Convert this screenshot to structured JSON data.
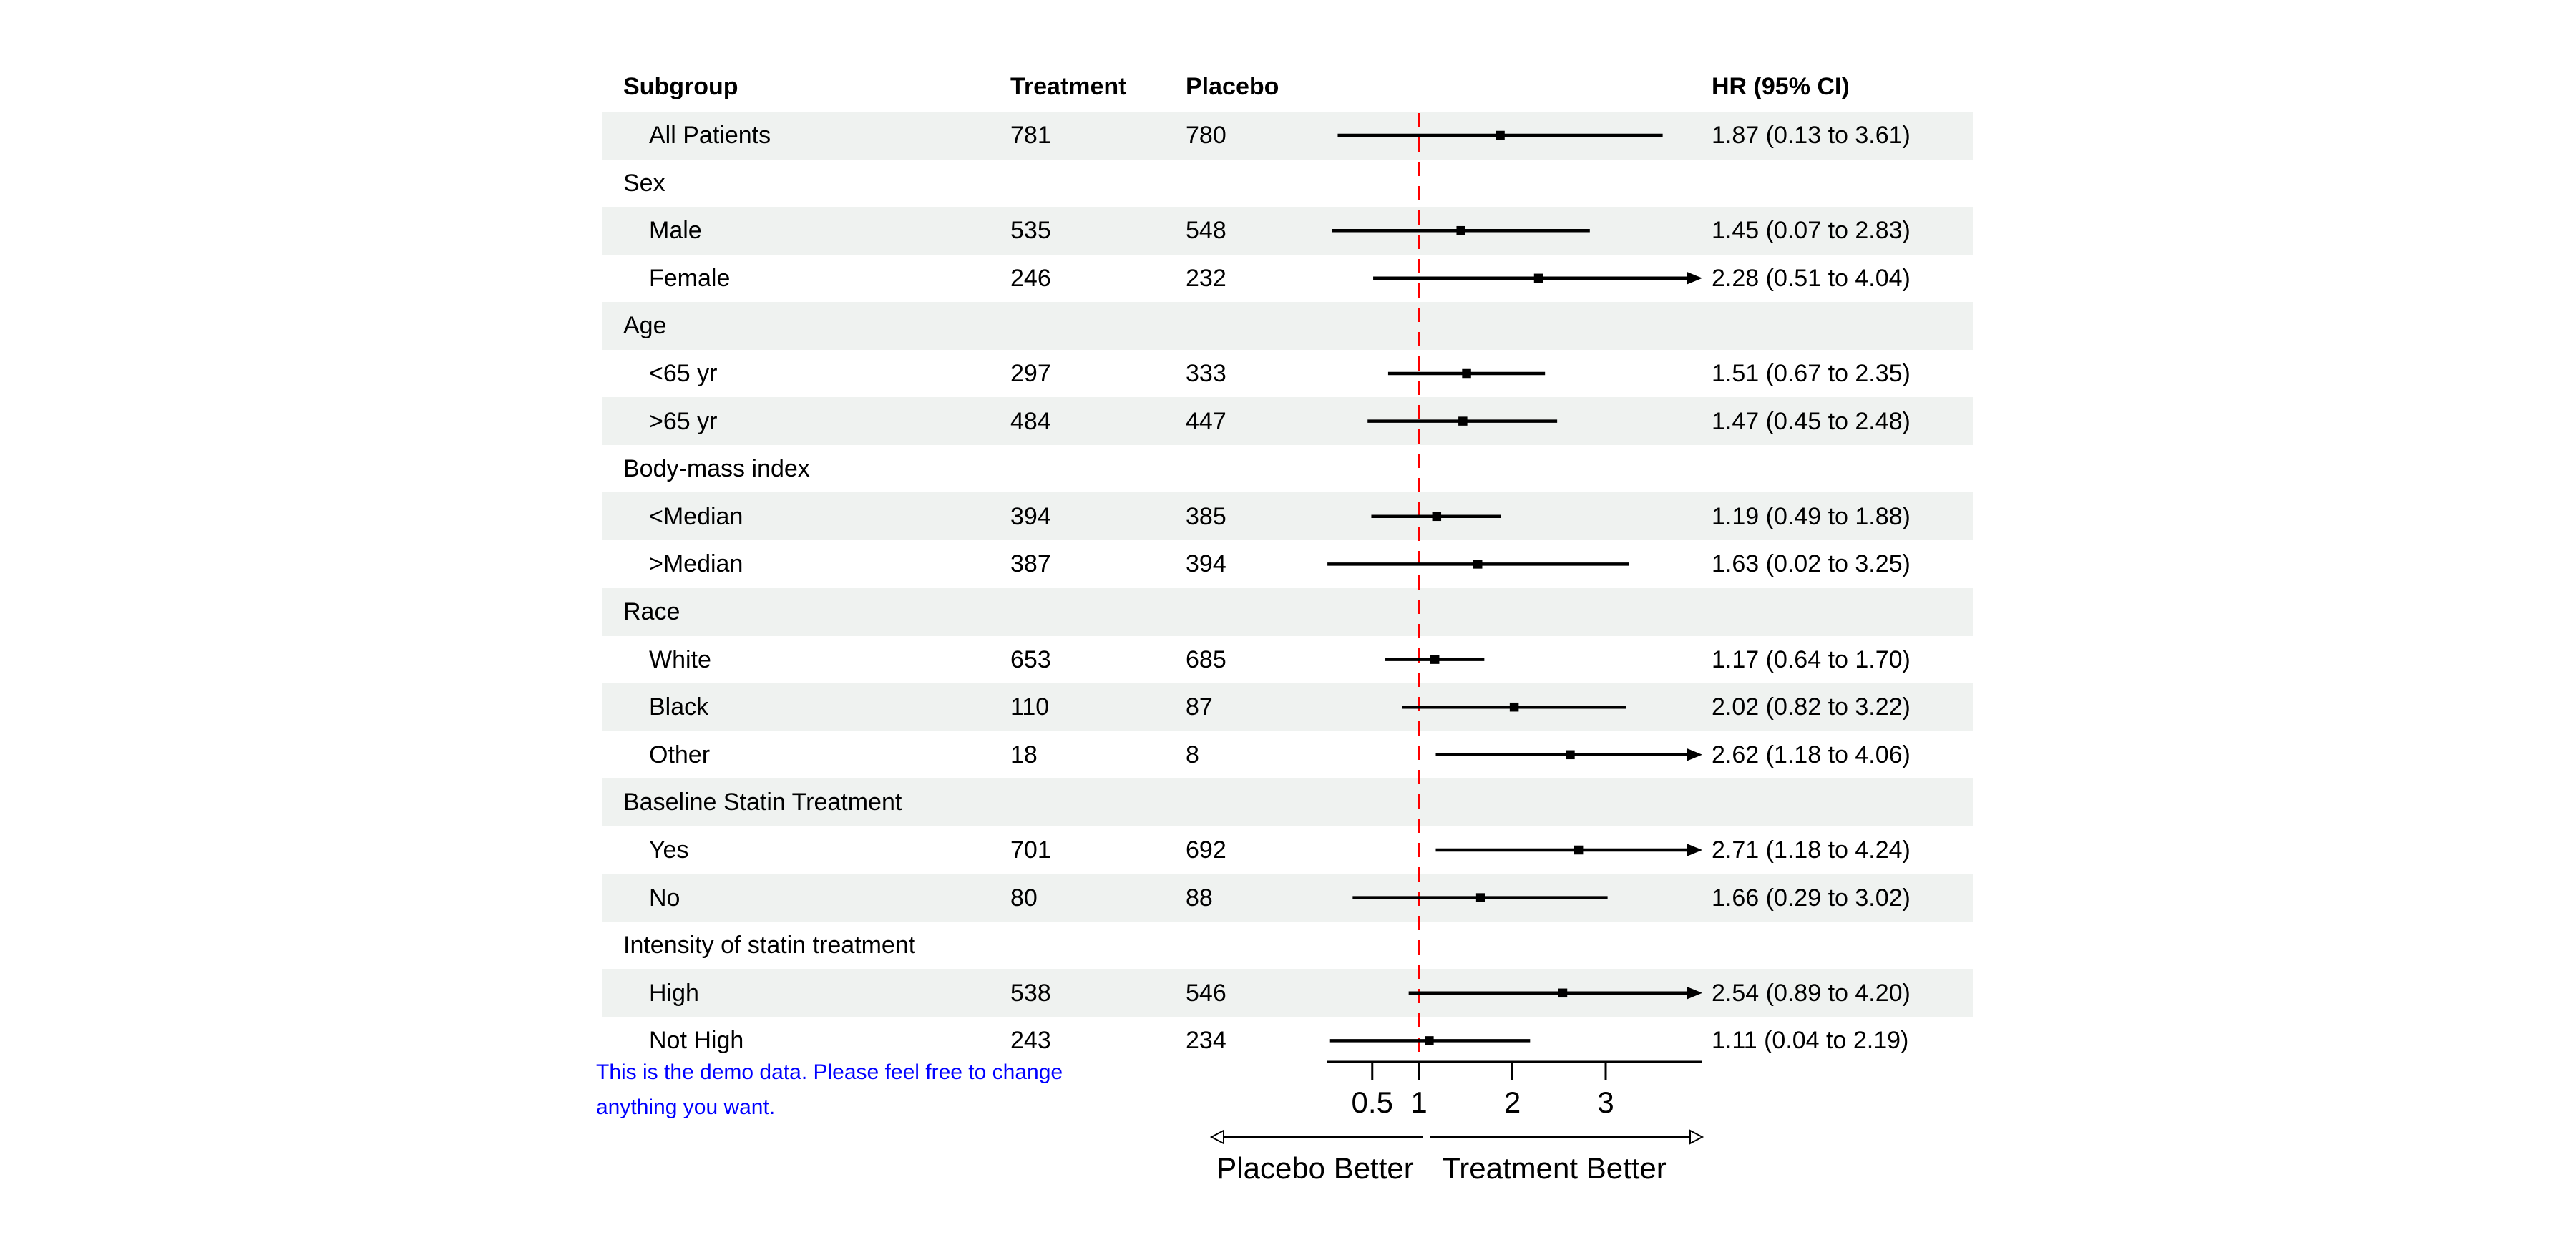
{
  "note": {
    "line1": "This is the demo data. Please feel free to change",
    "line2": "anything you want.",
    "color": "#0000ff"
  },
  "chart_data": {
    "type": "forest",
    "title": "",
    "scale": "linear",
    "header": {
      "subgroup": "Subgroup",
      "treatment": "Treatment",
      "placebo": "Placebo",
      "hr": "HR (95% CI)"
    },
    "x_ticks": [
      "0.5",
      "1",
      "2",
      "3"
    ],
    "x_tick_values": [
      0.5,
      1,
      2,
      3
    ],
    "x_axis_range": [
      0.02,
      4.03
    ],
    "clip_upper": 4.0,
    "reference_line": 1.0,
    "reference_line_color": "#ff0000",
    "row_band_color": "#eff2f0",
    "marker_color": "#000000",
    "xlabel_left": "Placebo Better",
    "xlabel_right": "Treatment Better",
    "rows": [
      {
        "kind": "overall",
        "label": "All Patients",
        "treatment": "781",
        "placebo": "780",
        "hr": 1.87,
        "ci_low": 0.13,
        "ci_high": 3.61,
        "hr_text": "1.87 (0.13 to 3.61)",
        "clipped": false,
        "shaded": true
      },
      {
        "kind": "group",
        "label": "Sex",
        "shaded": false
      },
      {
        "kind": "item",
        "label": "Male",
        "treatment": "535",
        "placebo": "548",
        "hr": 1.45,
        "ci_low": 0.07,
        "ci_high": 2.83,
        "hr_text": "1.45 (0.07 to 2.83)",
        "clipped": false,
        "shaded": true
      },
      {
        "kind": "item",
        "label": "Female",
        "treatment": "246",
        "placebo": "232",
        "hr": 2.28,
        "ci_low": 0.51,
        "ci_high": 4.04,
        "hr_text": "2.28 (0.51 to 4.04)",
        "clipped": true,
        "shaded": false
      },
      {
        "kind": "group",
        "label": "Age",
        "shaded": true
      },
      {
        "kind": "item",
        "label": "<65 yr",
        "treatment": "297",
        "placebo": "333",
        "hr": 1.51,
        "ci_low": 0.67,
        "ci_high": 2.35,
        "hr_text": "1.51 (0.67 to 2.35)",
        "clipped": false,
        "shaded": false
      },
      {
        "kind": "item",
        "label": ">65 yr",
        "treatment": "484",
        "placebo": "447",
        "hr": 1.47,
        "ci_low": 0.45,
        "ci_high": 2.48,
        "hr_text": "1.47 (0.45 to 2.48)",
        "clipped": false,
        "shaded": true
      },
      {
        "kind": "group",
        "label": "Body-mass index",
        "shaded": false
      },
      {
        "kind": "item",
        "label": "<Median",
        "treatment": "394",
        "placebo": "385",
        "hr": 1.19,
        "ci_low": 0.49,
        "ci_high": 1.88,
        "hr_text": "1.19 (0.49 to 1.88)",
        "clipped": false,
        "shaded": true
      },
      {
        "kind": "item",
        "label": ">Median",
        "treatment": "387",
        "placebo": "394",
        "hr": 1.63,
        "ci_low": 0.02,
        "ci_high": 3.25,
        "hr_text": "1.63 (0.02 to 3.25)",
        "clipped": false,
        "shaded": false
      },
      {
        "kind": "group",
        "label": "Race",
        "shaded": true
      },
      {
        "kind": "item",
        "label": "White",
        "treatment": "653",
        "placebo": "685",
        "hr": 1.17,
        "ci_low": 0.64,
        "ci_high": 1.7,
        "hr_text": "1.17 (0.64 to 1.70)",
        "clipped": false,
        "shaded": false
      },
      {
        "kind": "item",
        "label": "Black",
        "treatment": "110",
        "placebo": "87",
        "hr": 2.02,
        "ci_low": 0.82,
        "ci_high": 3.22,
        "hr_text": "2.02 (0.82 to 3.22)",
        "clipped": false,
        "shaded": true
      },
      {
        "kind": "item",
        "label": "Other",
        "treatment": "18",
        "placebo": "8",
        "hr": 2.62,
        "ci_low": 1.18,
        "ci_high": 4.06,
        "hr_text": "2.62 (1.18 to 4.06)",
        "clipped": true,
        "shaded": false
      },
      {
        "kind": "group",
        "label": "Baseline Statin Treatment",
        "shaded": true
      },
      {
        "kind": "item",
        "label": "Yes",
        "treatment": "701",
        "placebo": "692",
        "hr": 2.71,
        "ci_low": 1.18,
        "ci_high": 4.24,
        "hr_text": "2.71 (1.18 to 4.24)",
        "clipped": true,
        "shaded": false
      },
      {
        "kind": "item",
        "label": "No",
        "treatment": "80",
        "placebo": "88",
        "hr": 1.66,
        "ci_low": 0.29,
        "ci_high": 3.02,
        "hr_text": "1.66 (0.29 to 3.02)",
        "clipped": false,
        "shaded": true
      },
      {
        "kind": "group",
        "label": "Intensity of statin treatment",
        "shaded": false
      },
      {
        "kind": "item",
        "label": "High",
        "treatment": "538",
        "placebo": "546",
        "hr": 2.54,
        "ci_low": 0.89,
        "ci_high": 4.2,
        "hr_text": "2.54 (0.89 to 4.20)",
        "clipped": true,
        "shaded": true
      },
      {
        "kind": "item",
        "label": "Not High",
        "treatment": "243",
        "placebo": "234",
        "hr": 1.11,
        "ci_low": 0.04,
        "ci_high": 2.19,
        "hr_text": "1.11 (0.04 to 2.19)",
        "clipped": false,
        "shaded": false
      }
    ]
  }
}
